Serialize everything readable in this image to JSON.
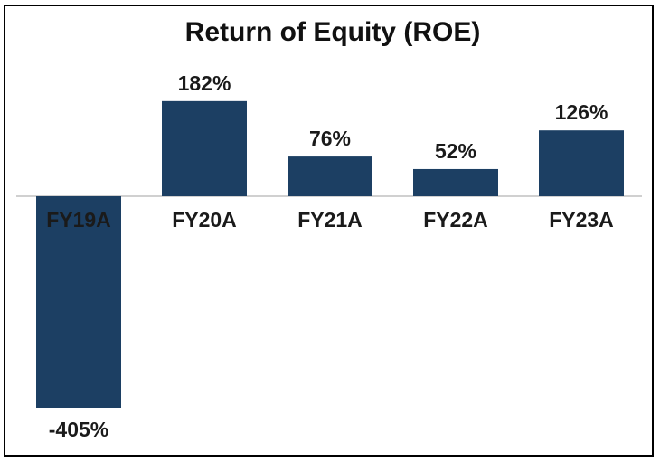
{
  "chart_data": {
    "type": "bar",
    "title": "Return of Equity (ROE)",
    "categories": [
      "FY19A",
      "FY20A",
      "FY21A",
      "FY22A",
      "FY23A"
    ],
    "values": [
      -405,
      182,
      76,
      52,
      126
    ],
    "value_labels": [
      "-405%",
      "182%",
      "76%",
      "52%",
      "126%"
    ],
    "xlabel": "",
    "ylabel": "",
    "ylim": [
      -405,
      182
    ],
    "grid": false,
    "legend": "none",
    "bar_color": "#1c3f63",
    "axis_color": "#d0d0d0"
  }
}
